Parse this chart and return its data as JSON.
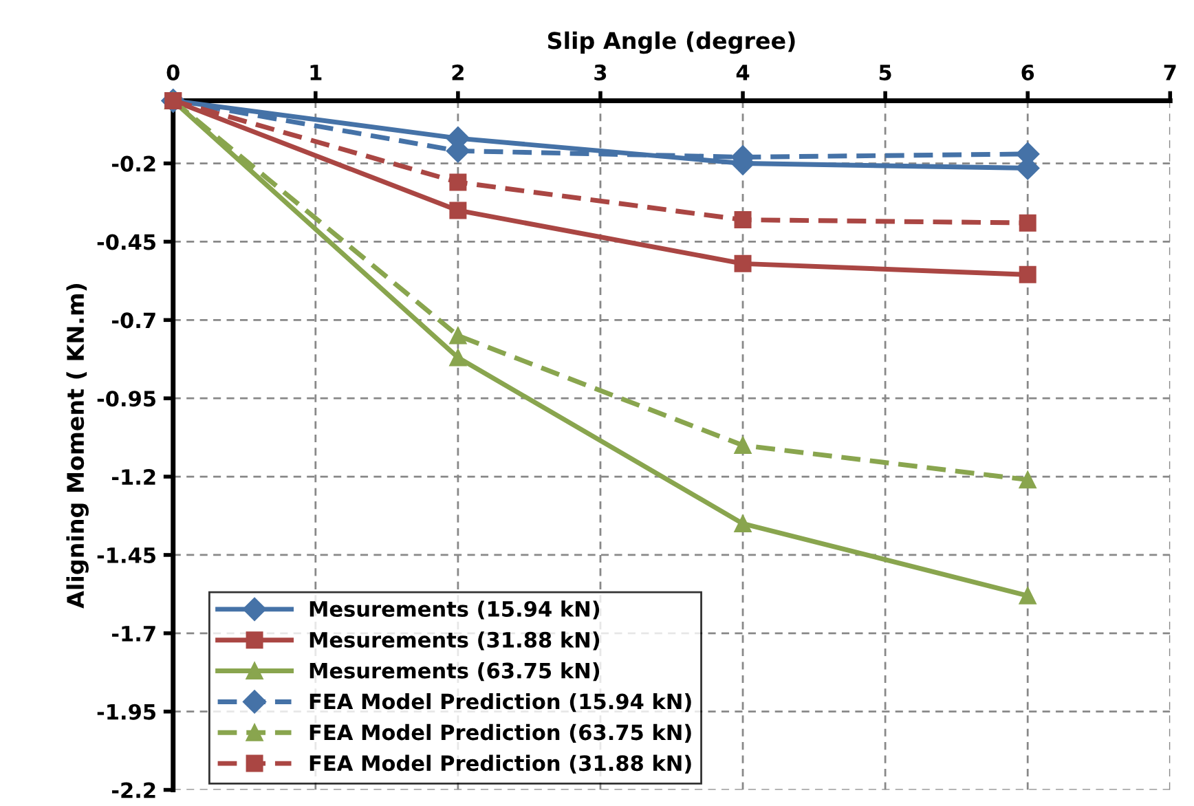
{
  "chart_data": {
    "type": "line",
    "xlabel": "Slip Angle (degree)",
    "ylabel": "Aligning Moment ( KN.m)",
    "xlim": [
      0,
      7
    ],
    "xticks": [
      0,
      1,
      2,
      3,
      4,
      5,
      6,
      7
    ],
    "ylim": [
      -2.2,
      0
    ],
    "yticks": [
      -2.2,
      -1.95,
      -1.7,
      -1.45,
      -1.2,
      -0.95,
      -0.7,
      -0.45,
      -0.2
    ],
    "x": [
      0,
      2,
      4,
      6
    ],
    "grid": true,
    "legend": "bottom left",
    "series": [
      {
        "name": "Mesurements (15.94 kN)",
        "color": "#4572a7",
        "marker": "diamond",
        "line_style": "solid",
        "values": [
          0,
          -0.12,
          -0.2,
          -0.215
        ]
      },
      {
        "name": "Mesurements (31.88 kN)",
        "color": "#aa4643",
        "marker": "square",
        "line_style": "solid",
        "values": [
          0,
          -0.35,
          -0.52,
          -0.555
        ]
      },
      {
        "name": "Mesurements (63.75 kN)",
        "color": "#89a54e",
        "marker": "triangle",
        "line_style": "solid",
        "values": [
          0,
          -0.82,
          -1.35,
          -1.58
        ]
      },
      {
        "name": "FEA Model Prediction (15.94 kN)",
        "color": "#4572a7",
        "marker": "diamond",
        "line_style": "dashed",
        "values": [
          0,
          -0.16,
          -0.18,
          -0.17
        ]
      },
      {
        "name": "FEA Model Prediction (63.75 kN)",
        "color": "#89a54e",
        "marker": "triangle",
        "line_style": "dashed",
        "values": [
          0,
          -0.75,
          -1.1,
          -1.21
        ]
      },
      {
        "name": "FEA Model Prediction (31.88 kN)",
        "color": "#aa4643",
        "marker": "square",
        "line_style": "dashed",
        "values": [
          0,
          -0.26,
          -0.38,
          -0.39
        ]
      }
    ]
  }
}
